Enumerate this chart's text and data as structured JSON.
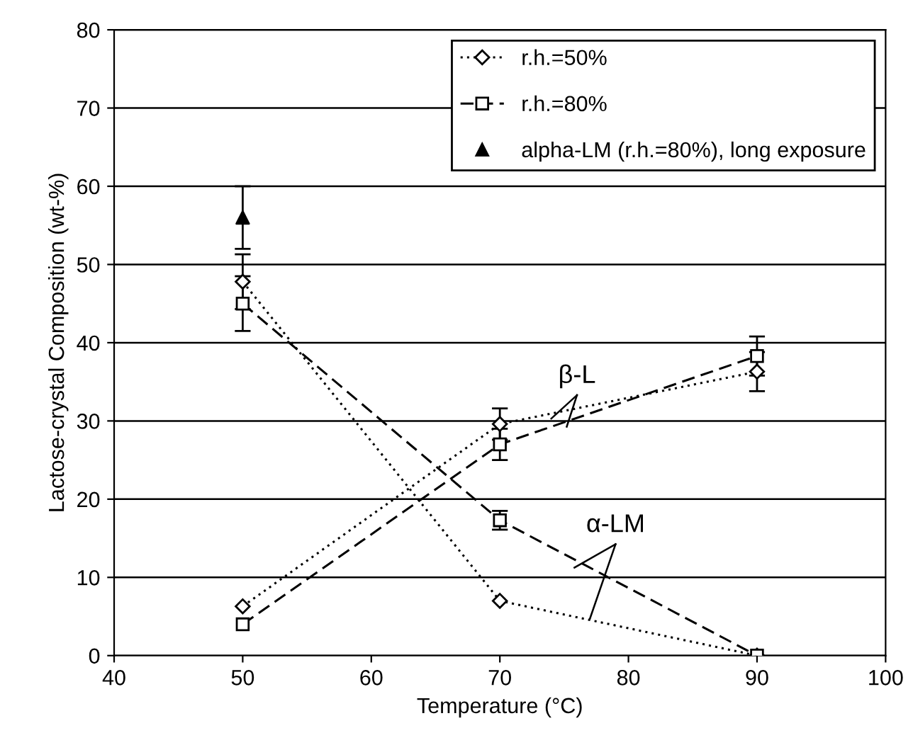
{
  "chart_data": {
    "type": "line",
    "xlabel": "Temperature (°C)",
    "ylabel": "Lactose-crystal Composition (wt-%)",
    "x": [
      50,
      70,
      90
    ],
    "series": [
      {
        "name": "r.h.=50%",
        "color": "#000000",
        "marker": "diamond",
        "line_style": "dotted",
        "values": [
          47.8,
          7,
          0
        ],
        "errors": [
          3.5,
          null,
          null
        ]
      },
      {
        "color": "#000000",
        "marker": "diamond",
        "line_style": "dotted",
        "values": [
          6.3,
          29.6,
          36.3
        ],
        "errors": [
          null,
          2,
          2.5
        ]
      },
      {
        "name": "r.h.=80%",
        "color": "#000000",
        "marker": "square",
        "line_style": "dashed",
        "values": [
          45,
          17.3,
          0
        ],
        "errors": [
          3.5,
          1.2,
          null
        ]
      },
      {
        "color": "#000000",
        "marker": "square",
        "line_style": "dashed",
        "values": [
          4,
          27,
          38.3
        ],
        "errors": [
          null,
          2,
          2.5
        ]
      },
      {
        "name": "alpha-LM (r.h.=80%), long exposure",
        "type": "scatter",
        "color": "#000000",
        "marker": "triangle",
        "x": [
          50
        ],
        "values": [
          56
        ],
        "errors": [
          4
        ]
      }
    ],
    "annotations": [
      {
        "text": "β-L",
        "x": 74,
        "y": 30.3
      },
      {
        "text": "α-LM",
        "x": 77,
        "y": 4.7
      }
    ],
    "xlim": [
      40,
      100
    ],
    "xticks": [
      40,
      50,
      60,
      70,
      80,
      90,
      100
    ],
    "ylim": [
      0,
      80
    ],
    "yticks": [
      0,
      10,
      20,
      30,
      40,
      50,
      60,
      70,
      80
    ],
    "grid": "y",
    "legend": "top right"
  }
}
